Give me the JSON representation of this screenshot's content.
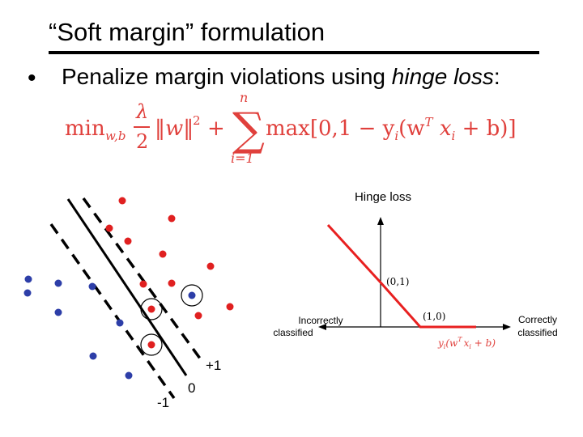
{
  "slide": {
    "title": "“Soft margin” formulation",
    "bullet_text": "Penalize margin violations using ",
    "bullet_emphasis": "hinge loss",
    "bullet_suffix": ":"
  },
  "formula": {
    "min": "min",
    "min_sub": "w,b",
    "lambda": "λ",
    "two": "2",
    "norm": "‖w‖",
    "sq": "2",
    "plus": "+",
    "sum": "∑",
    "sum_top": "n",
    "sum_bottom": "i=1",
    "max_expr": "max[0,1 − y",
    "yi_sub": "i",
    "paren_open": "(w",
    "t_sup": "T",
    "x": " x",
    "xi_sub": "i",
    "tail": " + b)]",
    "color": "#e0403c"
  },
  "margin_plot": {
    "label_plus1": "+1",
    "label_zero": "0",
    "label_minus1": "-1",
    "red_color": "#e02020",
    "blue_color": "#2d3ea8"
  },
  "hinge_plot": {
    "title": "Hinge loss",
    "label_incorrect_1": "Incorrectly",
    "label_incorrect_2": "classified",
    "label_correct_1": "Correctly",
    "label_correct_2": "classified",
    "point_01": "(0,1)",
    "point_10": "(1,0)",
    "xaxis_y": "y",
    "xaxis_i": "i",
    "xaxis_rest": "(w",
    "xaxis_T": "T",
    "xaxis_x": "x",
    "xaxis_xi": "i",
    "xaxis_end": " + b)",
    "line_color": "#e82020",
    "label_color": "#e0403c"
  }
}
